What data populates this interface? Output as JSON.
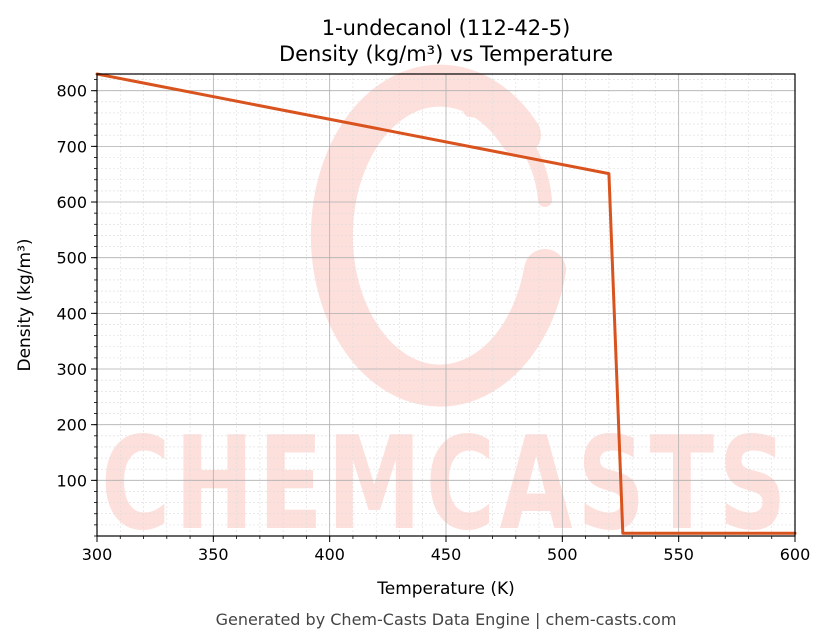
{
  "chart_data": {
    "type": "line",
    "title": "1-undecanol (112-42-5)",
    "subtitle": "Density (kg/m³) vs Temperature",
    "xlabel": "Temperature (K)",
    "ylabel": "Density (kg/m³)",
    "xlim": [
      300,
      600
    ],
    "ylim": [
      0,
      830
    ],
    "xticks": [
      300,
      350,
      400,
      450,
      500,
      550,
      600
    ],
    "yticks": [
      100,
      200,
      300,
      400,
      500,
      600,
      700,
      800
    ],
    "grid": true,
    "line_color": "#d9531e",
    "series": [
      {
        "x": [
          300,
          520,
          526,
          600
        ],
        "y": [
          830,
          651,
          5,
          5
        ]
      }
    ]
  },
  "watermark": "CHEMCASTS",
  "footer": "Generated by Chem-Casts Data Engine | chem-casts.com"
}
